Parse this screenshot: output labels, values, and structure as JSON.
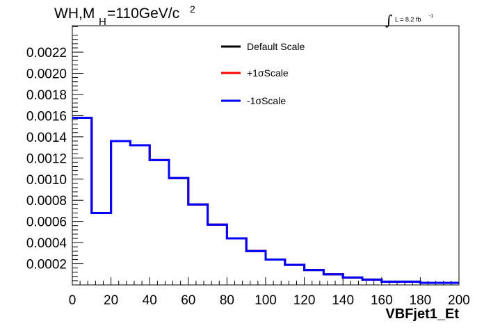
{
  "chart_data": {
    "type": "histogram",
    "title_main": "WH,M",
    "title_sub": "H",
    "title_value": "=110GeV/c",
    "title_sup": "2",
    "luminosity_label": "L = 8.2 fb",
    "luminosity_sup": "-1",
    "xlabel": "VBFjet1_Et",
    "ylabel": "",
    "xlim": [
      0,
      200
    ],
    "ylim": [
      0,
      0.00245
    ],
    "x_ticks": [
      "0",
      "20",
      "40",
      "60",
      "80",
      "100",
      "120",
      "140",
      "160",
      "180",
      "200"
    ],
    "y_ticks": [
      "0.0002",
      "0.0004",
      "0.0006",
      "0.0008",
      "0.0010",
      "0.0012",
      "0.0014",
      "0.0016",
      "0.0018",
      "0.0020",
      "0.0022"
    ],
    "bin_edges": [
      0,
      10,
      20,
      30,
      40,
      50,
      60,
      70,
      80,
      90,
      100,
      110,
      120,
      130,
      140,
      150,
      160,
      170,
      180,
      190,
      200
    ],
    "series": [
      {
        "name": "Default Scale",
        "color": "#000000",
        "values": [
          0.00158,
          0.00068,
          0.00136,
          0.00132,
          0.00118,
          0.00101,
          0.00076,
          0.00057,
          0.00044,
          0.00032,
          0.00024,
          0.00019,
          0.00014,
          0.0001,
          7e-05,
          5e-05,
          3e-05,
          3e-05,
          2e-05,
          2e-05
        ]
      },
      {
        "name": "+1σScale",
        "color": "#ff0000",
        "values": [
          0.00158,
          0.00068,
          0.00136,
          0.00132,
          0.00118,
          0.00101,
          0.00076,
          0.00057,
          0.00044,
          0.00032,
          0.00024,
          0.00019,
          0.00014,
          0.0001,
          7e-05,
          5e-05,
          3e-05,
          3e-05,
          2e-05,
          2e-05
        ]
      },
      {
        "name": "-1σScale",
        "color": "#0000ff",
        "values": [
          0.00158,
          0.00068,
          0.00136,
          0.00132,
          0.00118,
          0.00101,
          0.00076,
          0.00057,
          0.00044,
          0.00032,
          0.00024,
          0.00019,
          0.00014,
          0.0001,
          7e-05,
          5e-05,
          3e-05,
          3e-05,
          2e-05,
          2e-05
        ]
      }
    ],
    "legend_position": "top-center",
    "grid": false
  }
}
